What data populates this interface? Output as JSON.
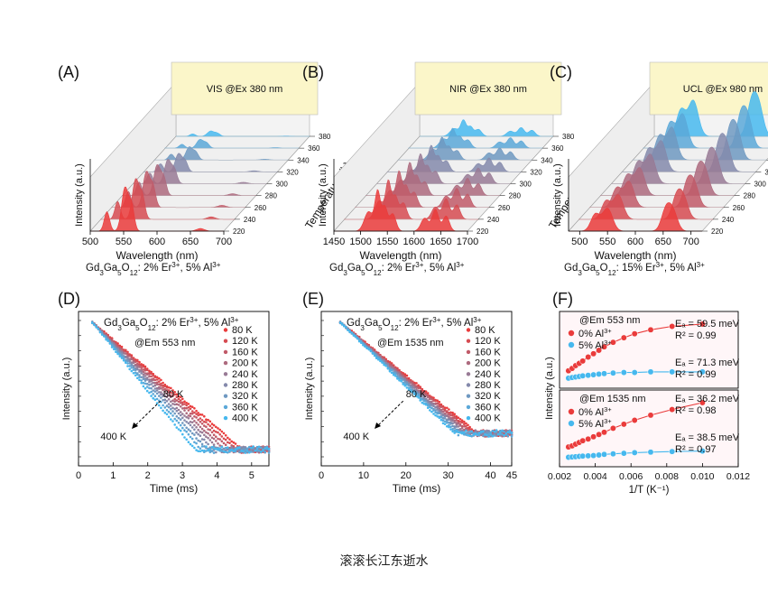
{
  "caption": "滚滚长江东逝水",
  "colors": {
    "hot": "#ea3b3b",
    "cold": "#46b8ee",
    "vis_box": "#fbf6c9",
    "panel_bg": "#fff6f8"
  },
  "chart_data": [
    {
      "panel": "(A)",
      "type": "area",
      "box_label": "VIS @Ex 380 nm",
      "xlabel": "Wavelength (nm)",
      "ylabel": "Intensity (a.u.)",
      "zlabel": "Temperature (k)",
      "xticks": [
        "500",
        "550",
        "600",
        "650",
        "700"
      ],
      "xlim": [
        500,
        700
      ],
      "zticks": [
        "220",
        "240",
        "260",
        "280",
        "300",
        "320",
        "340",
        "360",
        "380"
      ],
      "subtitle_pre": "Gd",
      "sub1": "3",
      "subtitle_mid1": "Ga",
      "sub2": "5",
      "subtitle_mid2": "O",
      "sub3": "12",
      "subtitle_post": ": 2% Er",
      "sup1": "3+",
      "subtitle_tail1": ", 5% Al",
      "sup2": "3+",
      "peaks": [
        [
          525,
          0.45,
          4
        ],
        [
          552,
          1.0,
          5
        ],
        [
          562,
          0.55,
          4
        ],
        [
          665,
          0.06,
          6
        ]
      ],
      "amps": [
        1.0,
        0.92,
        0.82,
        0.7,
        0.55,
        0.42,
        0.3,
        0.2,
        0.12
      ]
    },
    {
      "panel": "(B)",
      "type": "area",
      "box_label": "NIR @Ex 380 nm",
      "xlabel": "Wavelength (nm)",
      "ylabel": "Intensity (a.u.)",
      "zlabel": "Temperature (k)",
      "xticks": [
        "1450",
        "1500",
        "1550",
        "1600",
        "1650",
        "1700"
      ],
      "xlim": [
        1450,
        1700
      ],
      "zticks": [
        "220",
        "240",
        "260",
        "280",
        "300",
        "320",
        "340",
        "360",
        "380"
      ],
      "subtitle_pre": "Gd",
      "sub1": "3",
      "subtitle_mid1": "Ga",
      "sub2": "5",
      "subtitle_mid2": "O",
      "sub3": "12",
      "subtitle_post": ": 2% Er",
      "sup1": "3+",
      "subtitle_tail1": ", 5% Al",
      "sup2": "3+",
      "peaks": [
        [
          1515,
          0.45,
          8
        ],
        [
          1532,
          0.9,
          5
        ],
        [
          1545,
          0.55,
          5
        ],
        [
          1560,
          0.4,
          6
        ],
        [
          1620,
          0.3,
          7
        ],
        [
          1640,
          0.5,
          6
        ],
        [
          1660,
          0.35,
          6
        ]
      ],
      "amps": [
        1.0,
        0.95,
        0.88,
        0.8,
        0.72,
        0.64,
        0.55,
        0.48,
        0.4
      ]
    },
    {
      "panel": "(C)",
      "type": "area",
      "box_label": "UCL @Ex 980 nm",
      "xlabel": "Wavelength (nm)",
      "ylabel": "Intensity (a.u.)",
      "zlabel": "Temperature (k)",
      "xticks": [
        "500",
        "550",
        "600",
        "650",
        "700"
      ],
      "xlim": [
        480,
        720
      ],
      "zticks": [
        "220",
        "240",
        "260",
        "280",
        "300",
        "320",
        "340",
        "360",
        "380"
      ],
      "subtitle_pre": "Gd",
      "sub1": "3",
      "subtitle_mid1": "Ga",
      "sub2": "5",
      "subtitle_mid2": "O",
      "sub3": "12",
      "subtitle_post": ": 15% Er",
      "sup1": "3+",
      "subtitle_tail1": ", 5% Al",
      "sup2": "3+",
      "peaks": [
        [
          528,
          0.55,
          8
        ],
        [
          550,
          0.75,
          9
        ],
        [
          655,
          0.7,
          8
        ],
        [
          668,
          0.6,
          8
        ]
      ],
      "amps": [
        0.7,
        0.75,
        0.8,
        0.85,
        0.9,
        0.95,
        1.0,
        1.05,
        1.1
      ]
    },
    {
      "panel": "(D)",
      "type": "scatter",
      "title_pre": "Gd",
      "sub1": "3",
      "title_mid1": "Ga",
      "sub2": "5",
      "title_mid2": "O",
      "sub3": "12",
      "title_post": ": 2% Er",
      "sup1": "3+",
      "title_tail1": ", 5% Al",
      "sup2": "3+",
      "annotation": "@Em 553 nm",
      "xlabel": "Time (ms)",
      "ylabel": "Intensity (a.u.)",
      "xlim": [
        0,
        5.5
      ],
      "xticks": [
        "0",
        "1",
        "2",
        "3",
        "4",
        "5"
      ],
      "arrow_top": "80 K",
      "arrow_bottom": "400 K",
      "legend": [
        "80 K",
        "120 K",
        "160 K",
        "200 K",
        "240 K",
        "280 K",
        "320 K",
        "360 K",
        "400 K"
      ],
      "decay_start": 0.4,
      "tau_hot": 1.05,
      "tau_cold": 0.72
    },
    {
      "panel": "(E)",
      "type": "scatter",
      "title_pre": "Gd",
      "sub1": "3",
      "title_mid1": "Ga",
      "sub2": "5",
      "title_mid2": "O",
      "sub3": "12",
      "title_post": ": 2% Er",
      "sup1": "3+",
      "title_tail1": ", 5% Al",
      "sup2": "3+",
      "annotation": "@Em 1535 nm",
      "xlabel": "Time (ms)",
      "ylabel": "Intensity (a.u.)",
      "xlim": [
        0,
        45
      ],
      "xticks": [
        "0",
        "10",
        "20",
        "30",
        "40",
        "45"
      ],
      "arrow_top": "80 K",
      "arrow_bottom": "400 K",
      "legend": [
        "80 K",
        "120 K",
        "160 K",
        "200 K",
        "240 K",
        "280 K",
        "320 K",
        "360 K",
        "400 K"
      ],
      "decay_start": 4.5,
      "tau_hot": 9.0,
      "tau_cold": 7.5
    },
    {
      "panel": "(F)",
      "type": "scatter",
      "xlabel": "1/T (K⁻¹)",
      "ylabel": "Intensity (a.u.)",
      "xlim": [
        0.002,
        0.012
      ],
      "xticks": [
        "0.002",
        "0.004",
        "0.006",
        "0.008",
        "0.010",
        "0.012"
      ],
      "x": [
        0.0025,
        0.0027,
        0.0029,
        0.0031,
        0.0033,
        0.0036,
        0.0039,
        0.0042,
        0.0045,
        0.005,
        0.0056,
        0.0062,
        0.0071,
        0.0083,
        0.01
      ],
      "subplots": [
        {
          "annotation": "@Em 553 nm",
          "series": [
            {
              "name": "0% Al",
              "sup": "3+",
              "color": "#ea3b3b",
              "fit": "Eₐ = 59.5 meV",
              "r2": "R² = 0.99",
              "values": [
                0.18,
                0.22,
                0.27,
                0.31,
                0.35,
                0.42,
                0.48,
                0.54,
                0.6,
                0.68,
                0.76,
                0.83,
                0.9,
                0.96,
                1.0
              ]
            },
            {
              "name": "5% Al",
              "sup": "3+",
              "color": "#46b8ee",
              "fit": "Eₐ = 71.3 meV",
              "r2": "R² = 0.99",
              "values": [
                0.05,
                0.06,
                0.07,
                0.08,
                0.09,
                0.1,
                0.11,
                0.12,
                0.13,
                0.14,
                0.15,
                0.15,
                0.16,
                0.16,
                0.16
              ]
            }
          ]
        },
        {
          "annotation": "@Em 1535 nm",
          "series": [
            {
              "name": "0% Al",
              "sup": "3+",
              "color": "#ea3b3b",
              "fit": "Eₐ = 36.2 meV",
              "r2": "R² = 0.98",
              "values": [
                0.22,
                0.24,
                0.27,
                0.3,
                0.33,
                0.36,
                0.4,
                0.44,
                0.48,
                0.55,
                0.62,
                0.69,
                0.78,
                0.88,
                1.0
              ]
            },
            {
              "name": "5% Al",
              "sup": "3+",
              "color": "#46b8ee",
              "fit": "Eₐ = 38.5 meV",
              "r2": "R² = 0.97",
              "values": [
                0.04,
                0.045,
                0.05,
                0.055,
                0.06,
                0.065,
                0.07,
                0.08,
                0.09,
                0.1,
                0.11,
                0.12,
                0.13,
                0.14,
                0.15
              ]
            }
          ]
        }
      ]
    }
  ]
}
